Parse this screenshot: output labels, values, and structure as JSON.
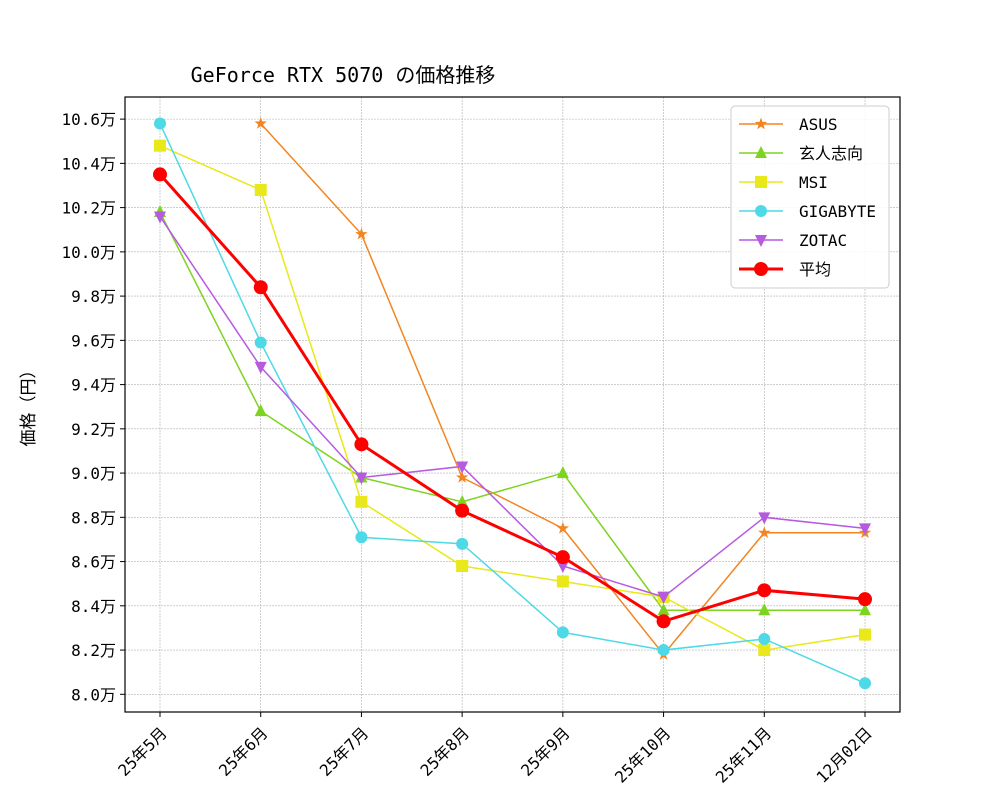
{
  "chart_data": {
    "type": "line",
    "title": "GeForce RTX 5070 の価格推移",
    "xlabel": "",
    "ylabel": "価格（円）",
    "categories": [
      "25年5月",
      "25年6月",
      "25年7月",
      "25年8月",
      "25年9月",
      "25年10月",
      "25年11月",
      "12月02日"
    ],
    "ylim": [
      7.92,
      10.7
    ],
    "yticks": [
      8.0,
      8.2,
      8.4,
      8.6,
      8.8,
      9.0,
      9.2,
      9.4,
      9.6,
      9.8,
      10.0,
      10.2,
      10.4,
      10.6
    ],
    "ytick_labels": [
      "8.0万",
      "8.2万",
      "8.4万",
      "8.6万",
      "8.8万",
      "9.0万",
      "9.2万",
      "9.4万",
      "9.6万",
      "9.8万",
      "10.0万",
      "10.2万",
      "10.4万",
      "10.6万"
    ],
    "grid": true,
    "legend_position": "top-right",
    "series": [
      {
        "name": "ASUS",
        "color": "#f28522",
        "marker": "star",
        "values": [
          null,
          10.58,
          10.08,
          8.98,
          8.75,
          8.18,
          8.73,
          8.73
        ]
      },
      {
        "name": "玄人志向",
        "color": "#7ed321",
        "marker": "triangle-up",
        "values": [
          10.18,
          9.28,
          8.98,
          8.87,
          9.0,
          8.38,
          8.38,
          8.38
        ]
      },
      {
        "name": "MSI",
        "color": "#e8e81a",
        "marker": "square",
        "values": [
          10.48,
          10.28,
          8.87,
          8.58,
          8.51,
          8.44,
          8.2,
          8.27
        ]
      },
      {
        "name": "GIGABYTE",
        "color": "#4dd9e6",
        "marker": "circle",
        "values": [
          10.58,
          9.59,
          8.71,
          8.68,
          8.28,
          8.2,
          8.25,
          8.05
        ]
      },
      {
        "name": "ZOTAC",
        "color": "#b65ae0",
        "marker": "triangle-down",
        "values": [
          10.16,
          9.48,
          8.98,
          9.03,
          8.58,
          8.44,
          8.8,
          8.75
        ]
      },
      {
        "name": "平均",
        "color": "#ff0000",
        "marker": "circle",
        "bold": true,
        "values": [
          10.35,
          9.84,
          9.13,
          8.83,
          8.62,
          8.33,
          8.47,
          8.43
        ]
      }
    ]
  }
}
